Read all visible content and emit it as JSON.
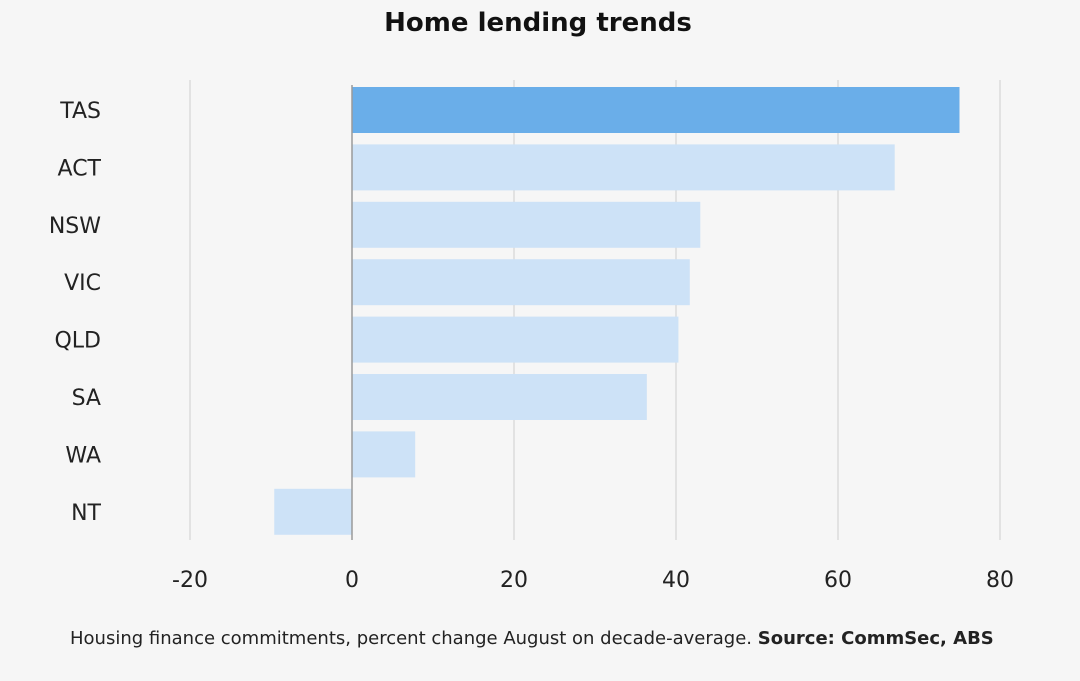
{
  "chart_data": {
    "type": "bar",
    "orientation": "horizontal",
    "title": "Home lending trends",
    "categories": [
      "TAS",
      "ACT",
      "NSW",
      "VIC",
      "QLD",
      "SA",
      "WA",
      "NT"
    ],
    "values": [
      75,
      67,
      43,
      41.7,
      40.3,
      36.4,
      7.8,
      -9.6
    ],
    "highlight": "TAS",
    "xlim": [
      -20,
      80
    ],
    "xticks": [
      -20,
      0,
      20,
      40,
      60,
      80
    ],
    "tick_labels": [
      "-20",
      "0",
      "20",
      "40",
      "60",
      "80"
    ],
    "grid": "vertical",
    "xlabel": "",
    "ylabel": ""
  },
  "caption": {
    "text": "Housing finance commitments, percent change August on decade-average.",
    "source": "Source: CommSec, ABS"
  },
  "colors": {
    "highlight_bar": "#6aaee9",
    "bar": "#cde2f7",
    "grid": "#d4d4d4",
    "zero_line": "#9a9a9a",
    "text": "#222222"
  }
}
